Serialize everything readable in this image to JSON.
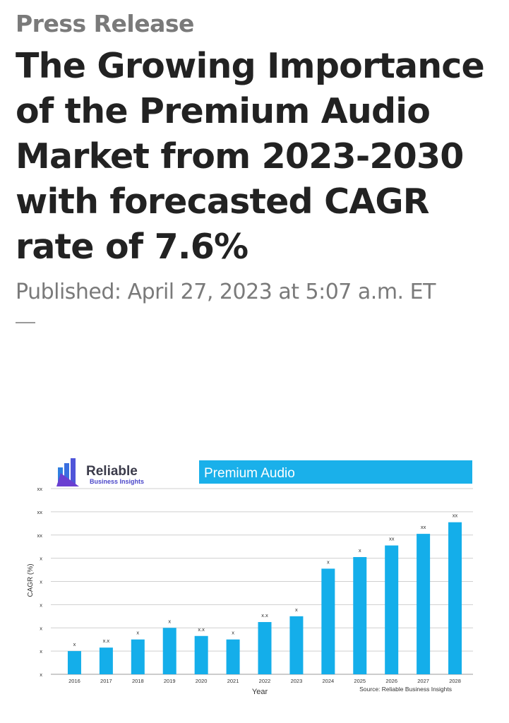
{
  "kicker": "Press Release",
  "headline": "The Growing Importance of the Premium Audio Market from 2023-2030 with forecasted CAGR rate of 7.6%",
  "published": "Published: April 27, 2023 at 5:07 a.m. ET",
  "logo": {
    "name": "Reliable",
    "tagline": "Business Insights",
    "bar_colors": [
      "#2f7fe0",
      "#6a3fd1"
    ]
  },
  "chart_data": {
    "type": "bar",
    "title": "Premium Audio",
    "title_bar_color": "#1ab0ea",
    "bar_color": "#14aeea",
    "xlabel": "Year",
    "ylabel": "CAGR (%)",
    "source": "Source: Reliable Business Insights",
    "grid": true,
    "y_tick_labels": [
      "x",
      "x",
      "x",
      "x",
      "x",
      "x",
      "xx",
      "xx",
      "xx"
    ],
    "ylim": [
      0,
      8
    ],
    "categories": [
      "2016",
      "2017",
      "2018",
      "2019",
      "2020",
      "2021",
      "2022",
      "2023",
      "2024",
      "2025",
      "2026",
      "2027",
      "2028"
    ],
    "values": [
      1.0,
      1.15,
      1.5,
      2.0,
      1.65,
      1.5,
      2.25,
      2.5,
      4.55,
      5.05,
      5.55,
      6.05,
      6.55
    ],
    "data_labels": [
      "x",
      "x.x",
      "x",
      "x",
      "x.x",
      "x",
      "x.x",
      "x",
      "x",
      "x",
      "xx",
      "xx",
      "xx"
    ]
  }
}
